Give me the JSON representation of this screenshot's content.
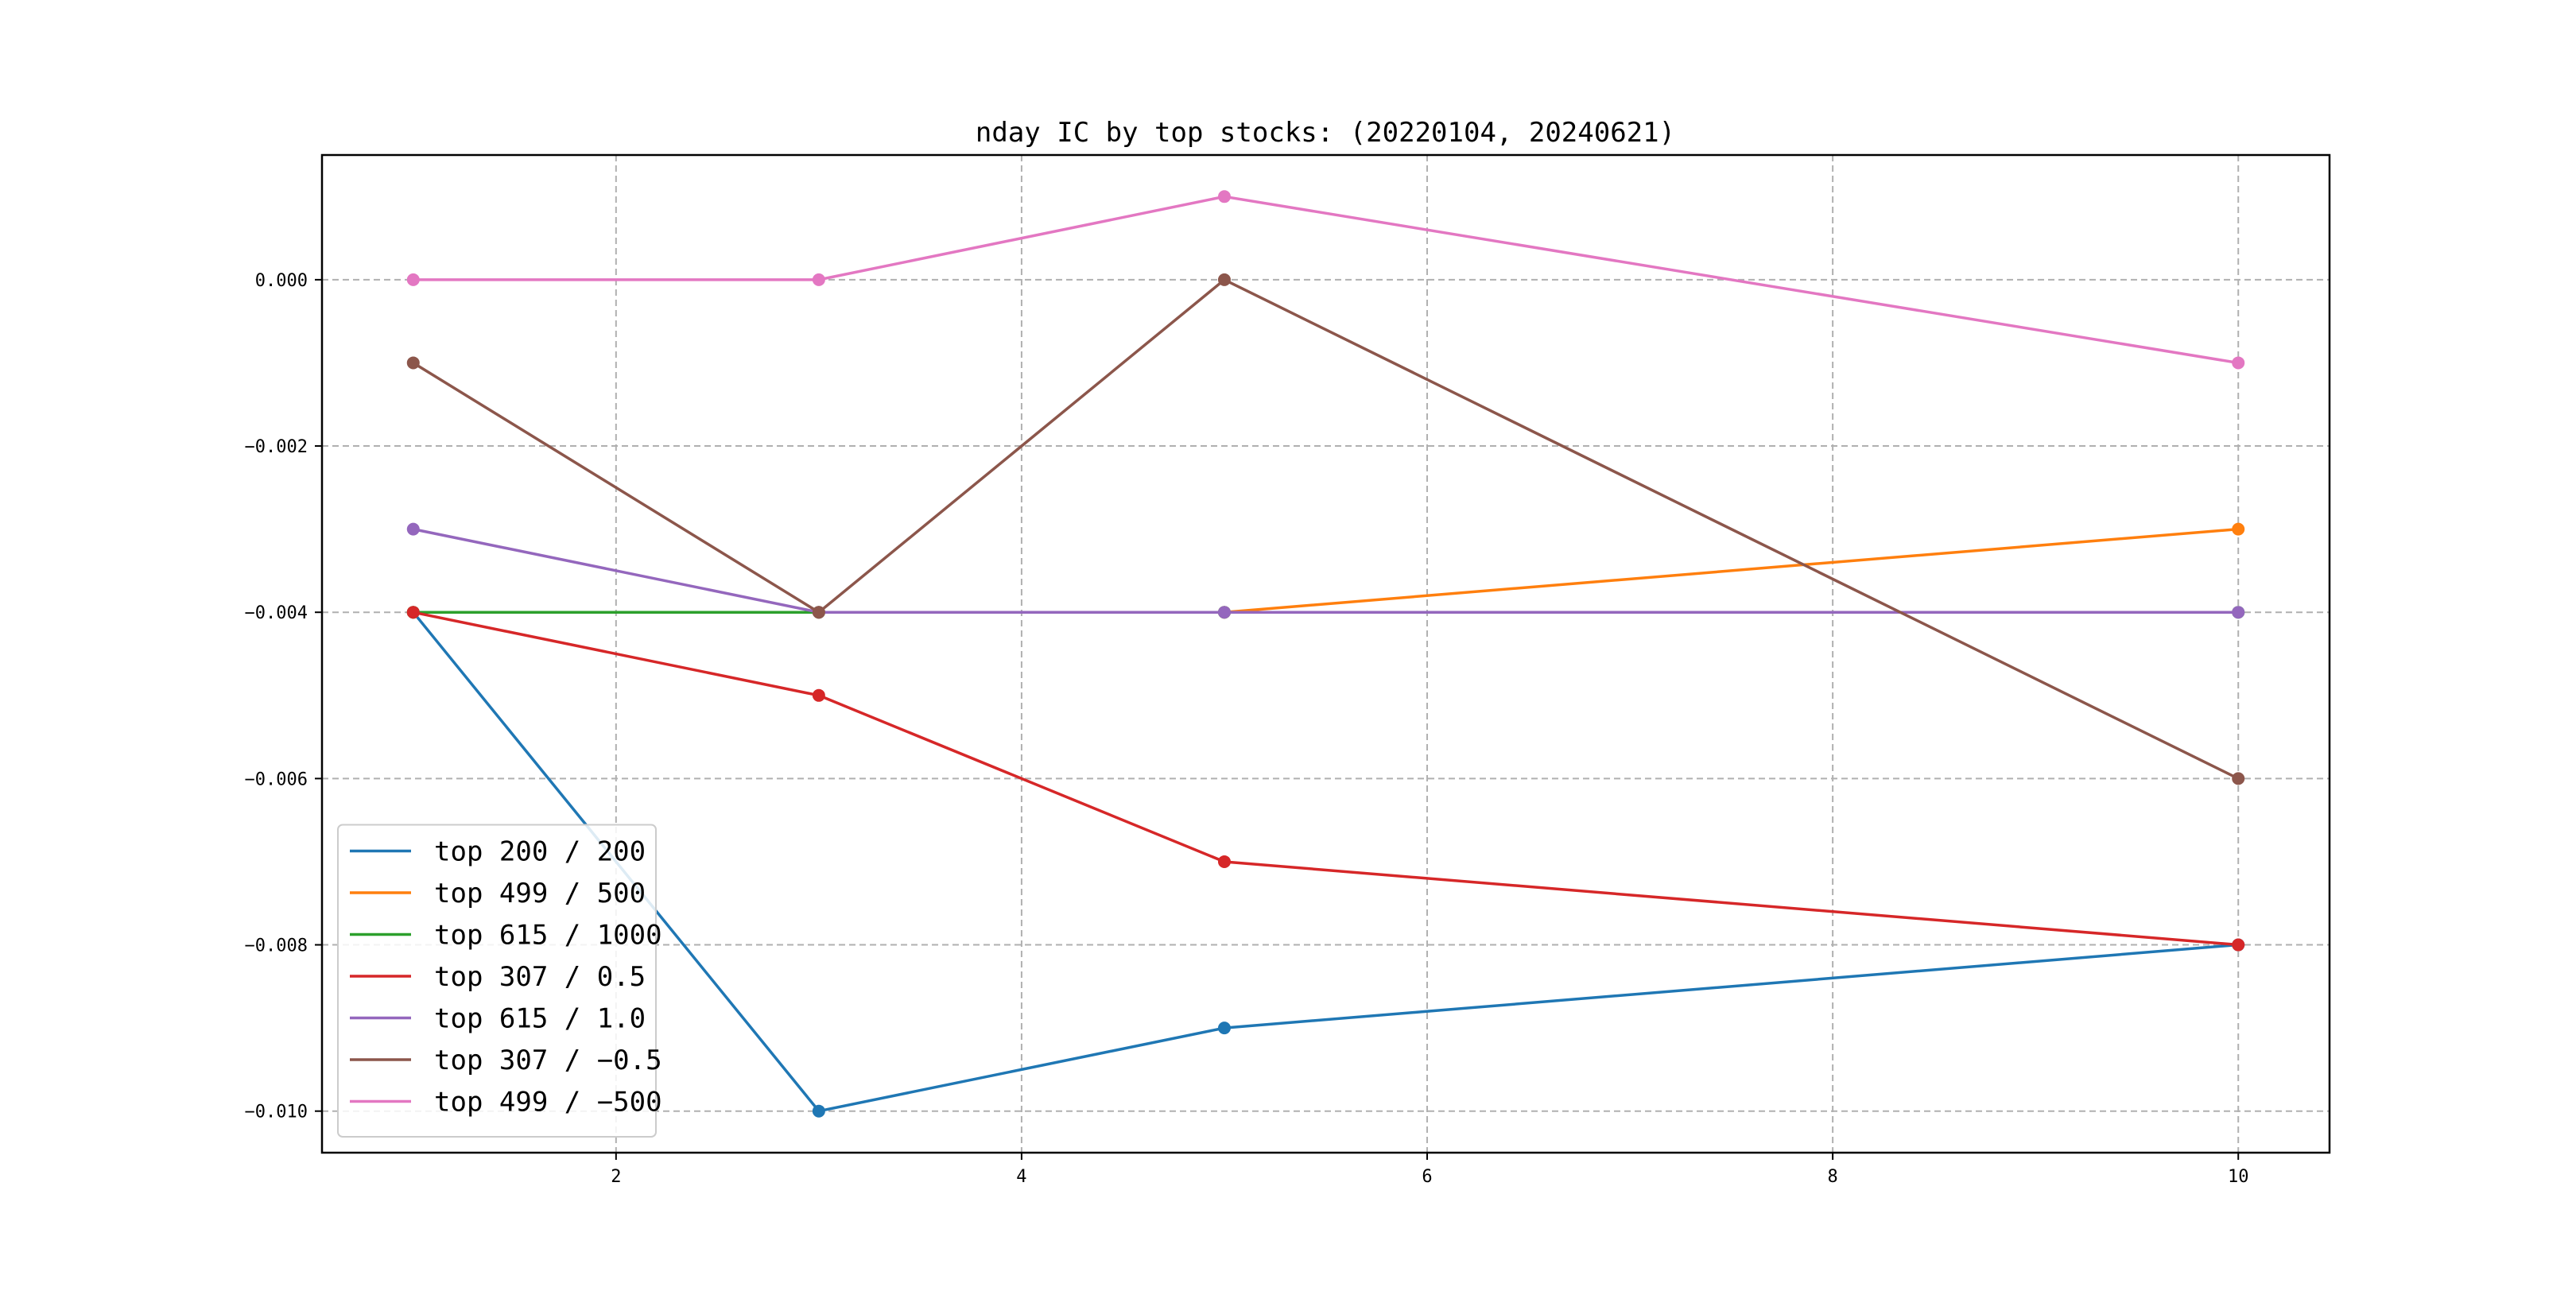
{
  "chart_data": {
    "type": "line",
    "title": "nday IC by top stocks: (20220104, 20240621)",
    "xlabel": "",
    "ylabel": "",
    "x": [
      1,
      3,
      5,
      10
    ],
    "xlim": [
      0.55,
      10.45
    ],
    "ylim": [
      -0.0105,
      0.0015
    ],
    "xticks": [
      2,
      4,
      6,
      8,
      10
    ],
    "xtick_labels": [
      "2",
      "4",
      "6",
      "8",
      "10"
    ],
    "yticks": [
      0.0,
      -0.002,
      -0.004,
      -0.006,
      -0.008,
      -0.01
    ],
    "ytick_labels": [
      "0.000",
      "−0.002",
      "−0.004",
      "−0.006",
      "−0.008",
      "−0.010"
    ],
    "grid": true,
    "legend_position": "lower-left",
    "series": [
      {
        "name": "top 200 / 200",
        "color": "#1f77b4",
        "values": [
          -0.004,
          -0.01,
          -0.009,
          -0.008
        ]
      },
      {
        "name": "top 499 / 500",
        "color": "#ff7f0e",
        "values": [
          -0.004,
          -0.004,
          -0.004,
          -0.003
        ]
      },
      {
        "name": "top 615 / 1000",
        "color": "#2ca02c",
        "values": [
          -0.004,
          -0.004,
          -0.004,
          -0.004
        ]
      },
      {
        "name": "top 307 / 0.5",
        "color": "#d62728",
        "values": [
          -0.004,
          -0.005,
          -0.007,
          -0.008
        ]
      },
      {
        "name": "top 615 / 1.0",
        "color": "#9467bd",
        "values": [
          -0.003,
          -0.004,
          -0.004,
          -0.004
        ]
      },
      {
        "name": "top 307 / −0.5",
        "color": "#8c564b",
        "values": [
          -0.001,
          -0.004,
          0.0,
          -0.006
        ]
      },
      {
        "name": "top 499 / −500",
        "color": "#e377c2",
        "values": [
          0.0,
          0.0,
          0.001,
          -0.001
        ]
      }
    ]
  }
}
